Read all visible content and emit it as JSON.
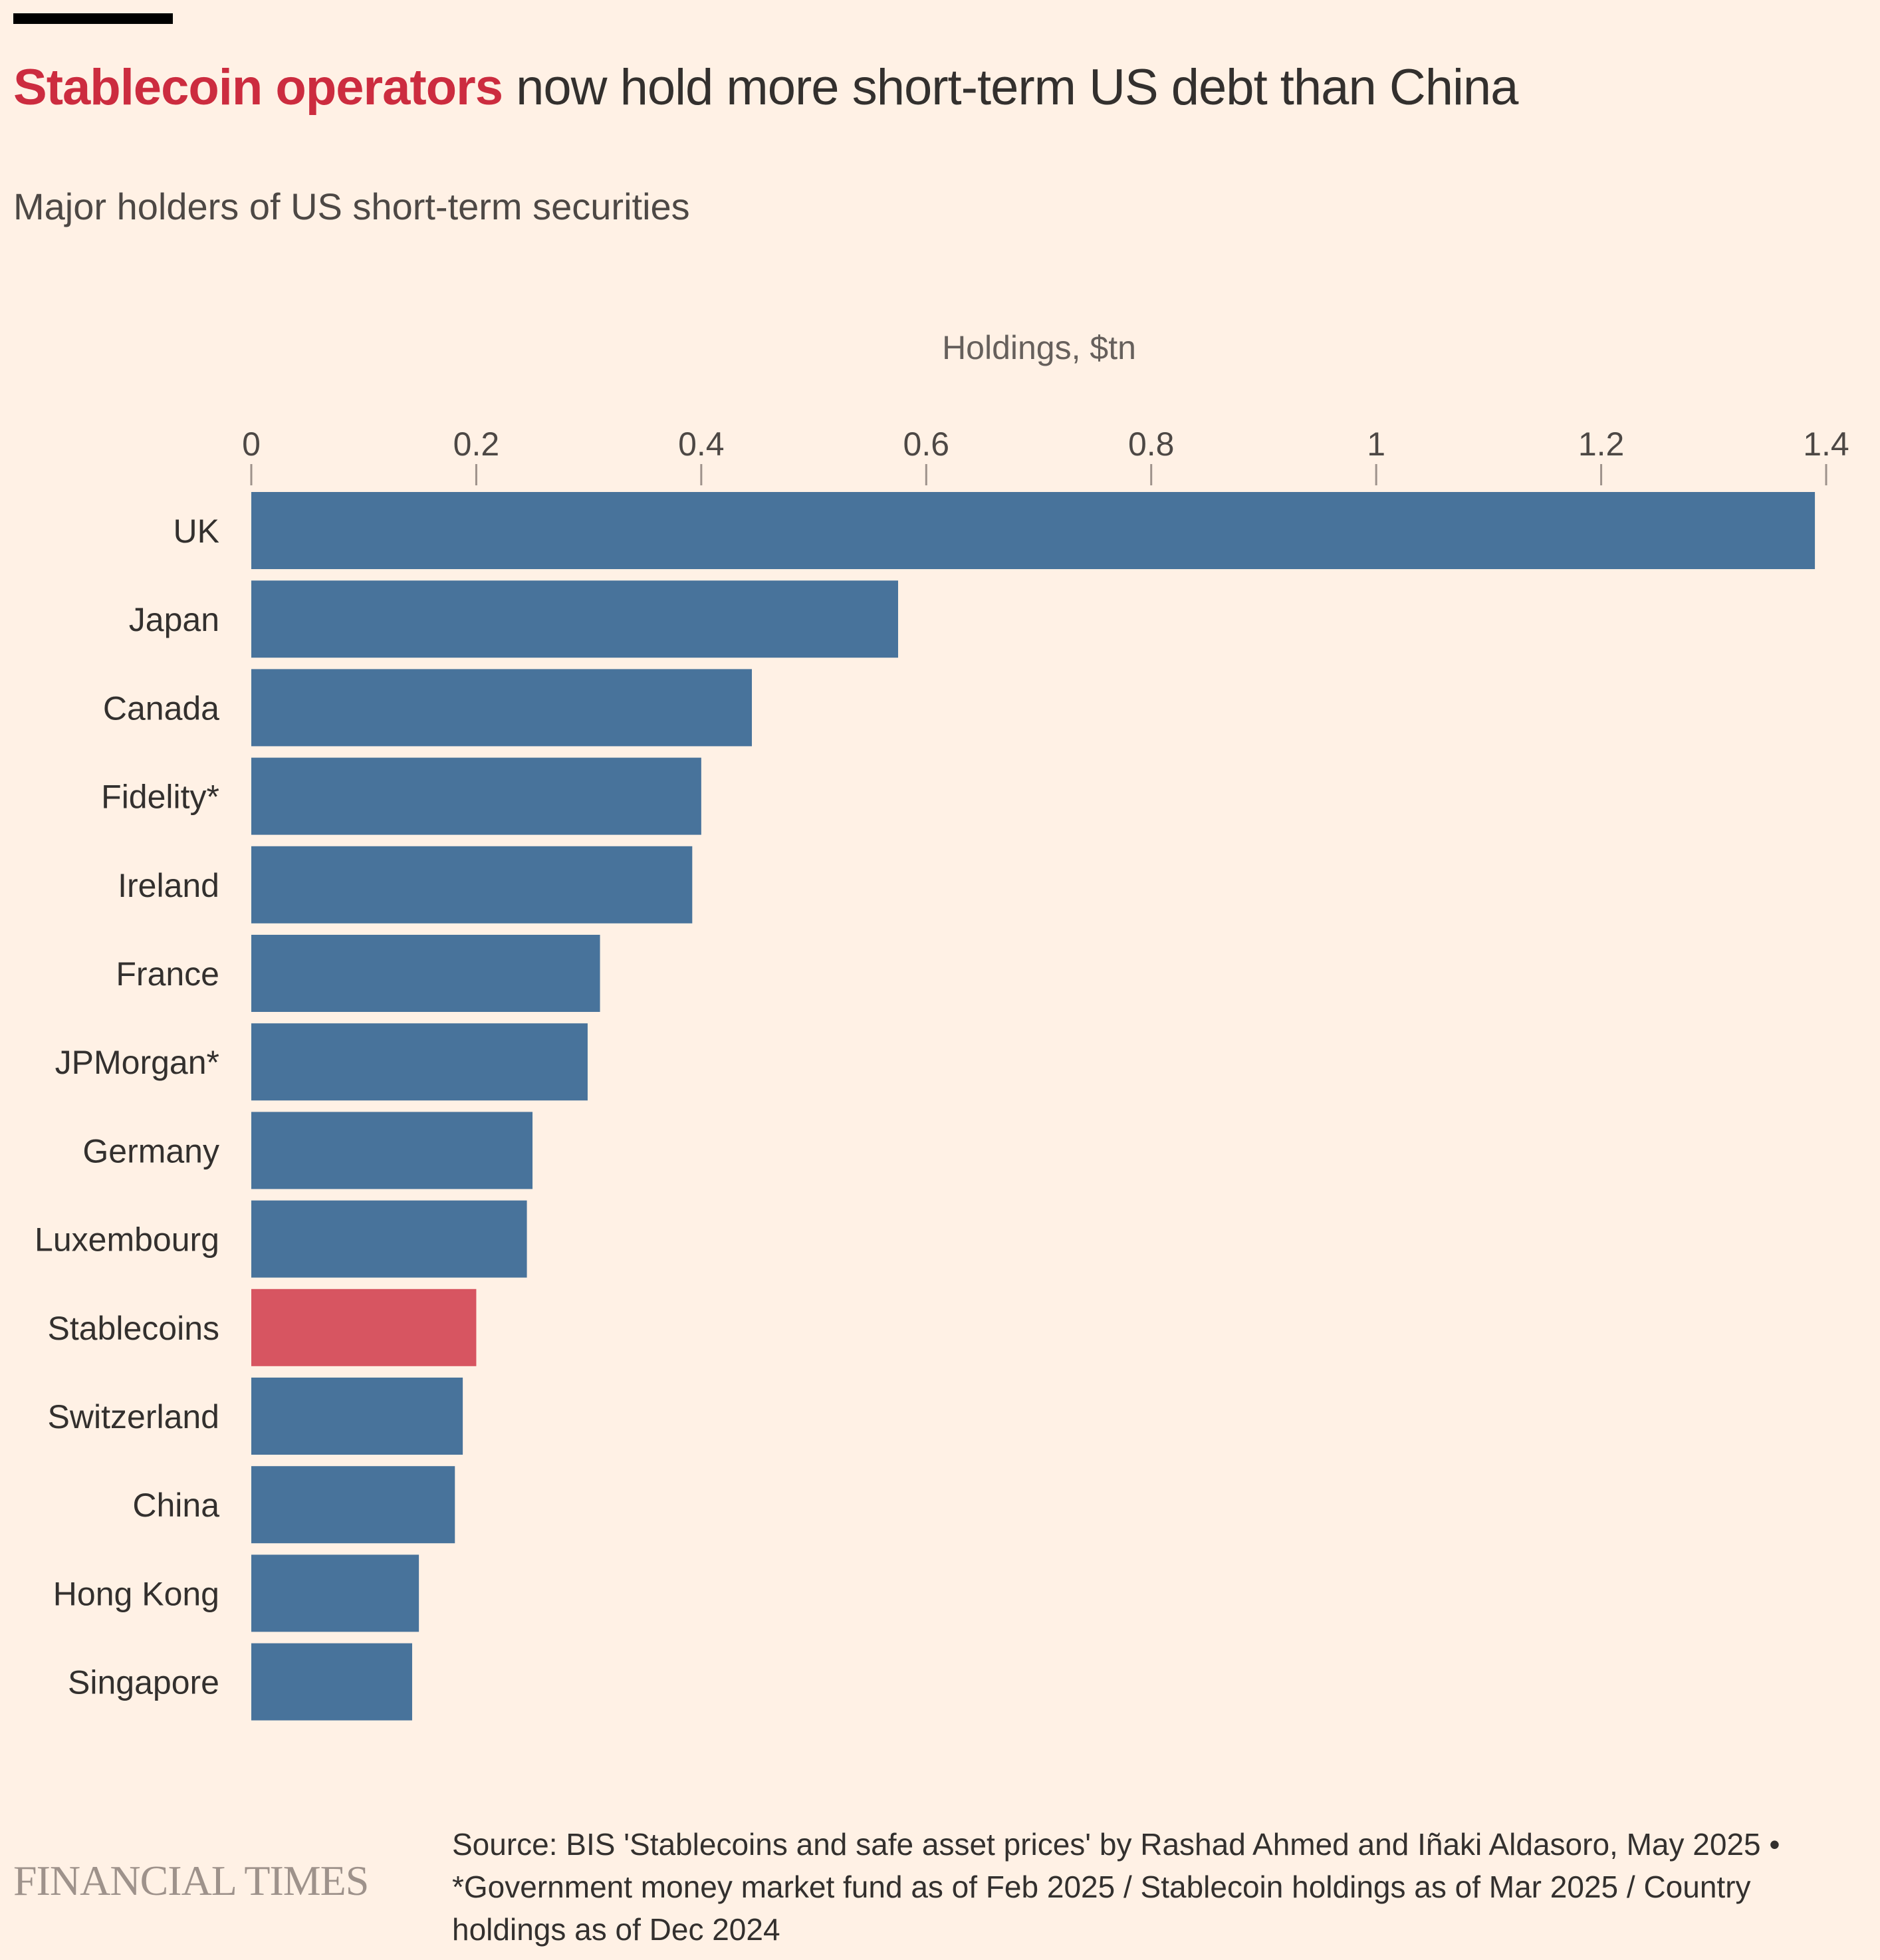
{
  "header": {
    "title_highlight": "Stablecoin operators",
    "title_rest": " now hold more short-term US debt than China",
    "subtitle": "Major holders of US short-term securities"
  },
  "colors": {
    "background": "#fff1e5",
    "bar_default": "#48739b",
    "bar_highlight": "#d75561",
    "title_highlight": "#cc2c3f",
    "text": "#33302e",
    "tick": "#9e928b"
  },
  "chart_data": {
    "type": "bar",
    "orientation": "horizontal",
    "title": "Major holders of US short-term securities",
    "xlabel": "Holdings, $tn",
    "ylabel": "",
    "xlim": [
      0,
      1.4
    ],
    "xticks": [
      0,
      0.2,
      0.4,
      0.6,
      0.8,
      1,
      1.2,
      1.4
    ],
    "xtick_labels": [
      "0",
      "0.2",
      "0.4",
      "0.6",
      "0.8",
      "1",
      "1.2",
      "1.4"
    ],
    "grid": false,
    "categories": [
      "UK",
      "Japan",
      "Canada",
      "Fidelity*",
      "Ireland",
      "France",
      "JPMorgan*",
      "Germany",
      "Luxembourg",
      "Stablecoins",
      "Switzerland",
      "China",
      "Hong Kong",
      "Singapore"
    ],
    "values": [
      1.39,
      0.575,
      0.445,
      0.4,
      0.392,
      0.31,
      0.299,
      0.25,
      0.245,
      0.2,
      0.188,
      0.181,
      0.149,
      0.143
    ],
    "highlight": [
      "Stablecoins"
    ]
  },
  "footer": {
    "logo": "FINANCIAL TIMES",
    "source": "Source: BIS 'Stablecoins and safe asset prices' by Rashad Ahmed and Iñaki Aldasoro, May 2025 • *Government money market fund as of Feb 2025 / Stablecoin holdings as of Mar 2025 / Country holdings as of Dec 2024"
  }
}
